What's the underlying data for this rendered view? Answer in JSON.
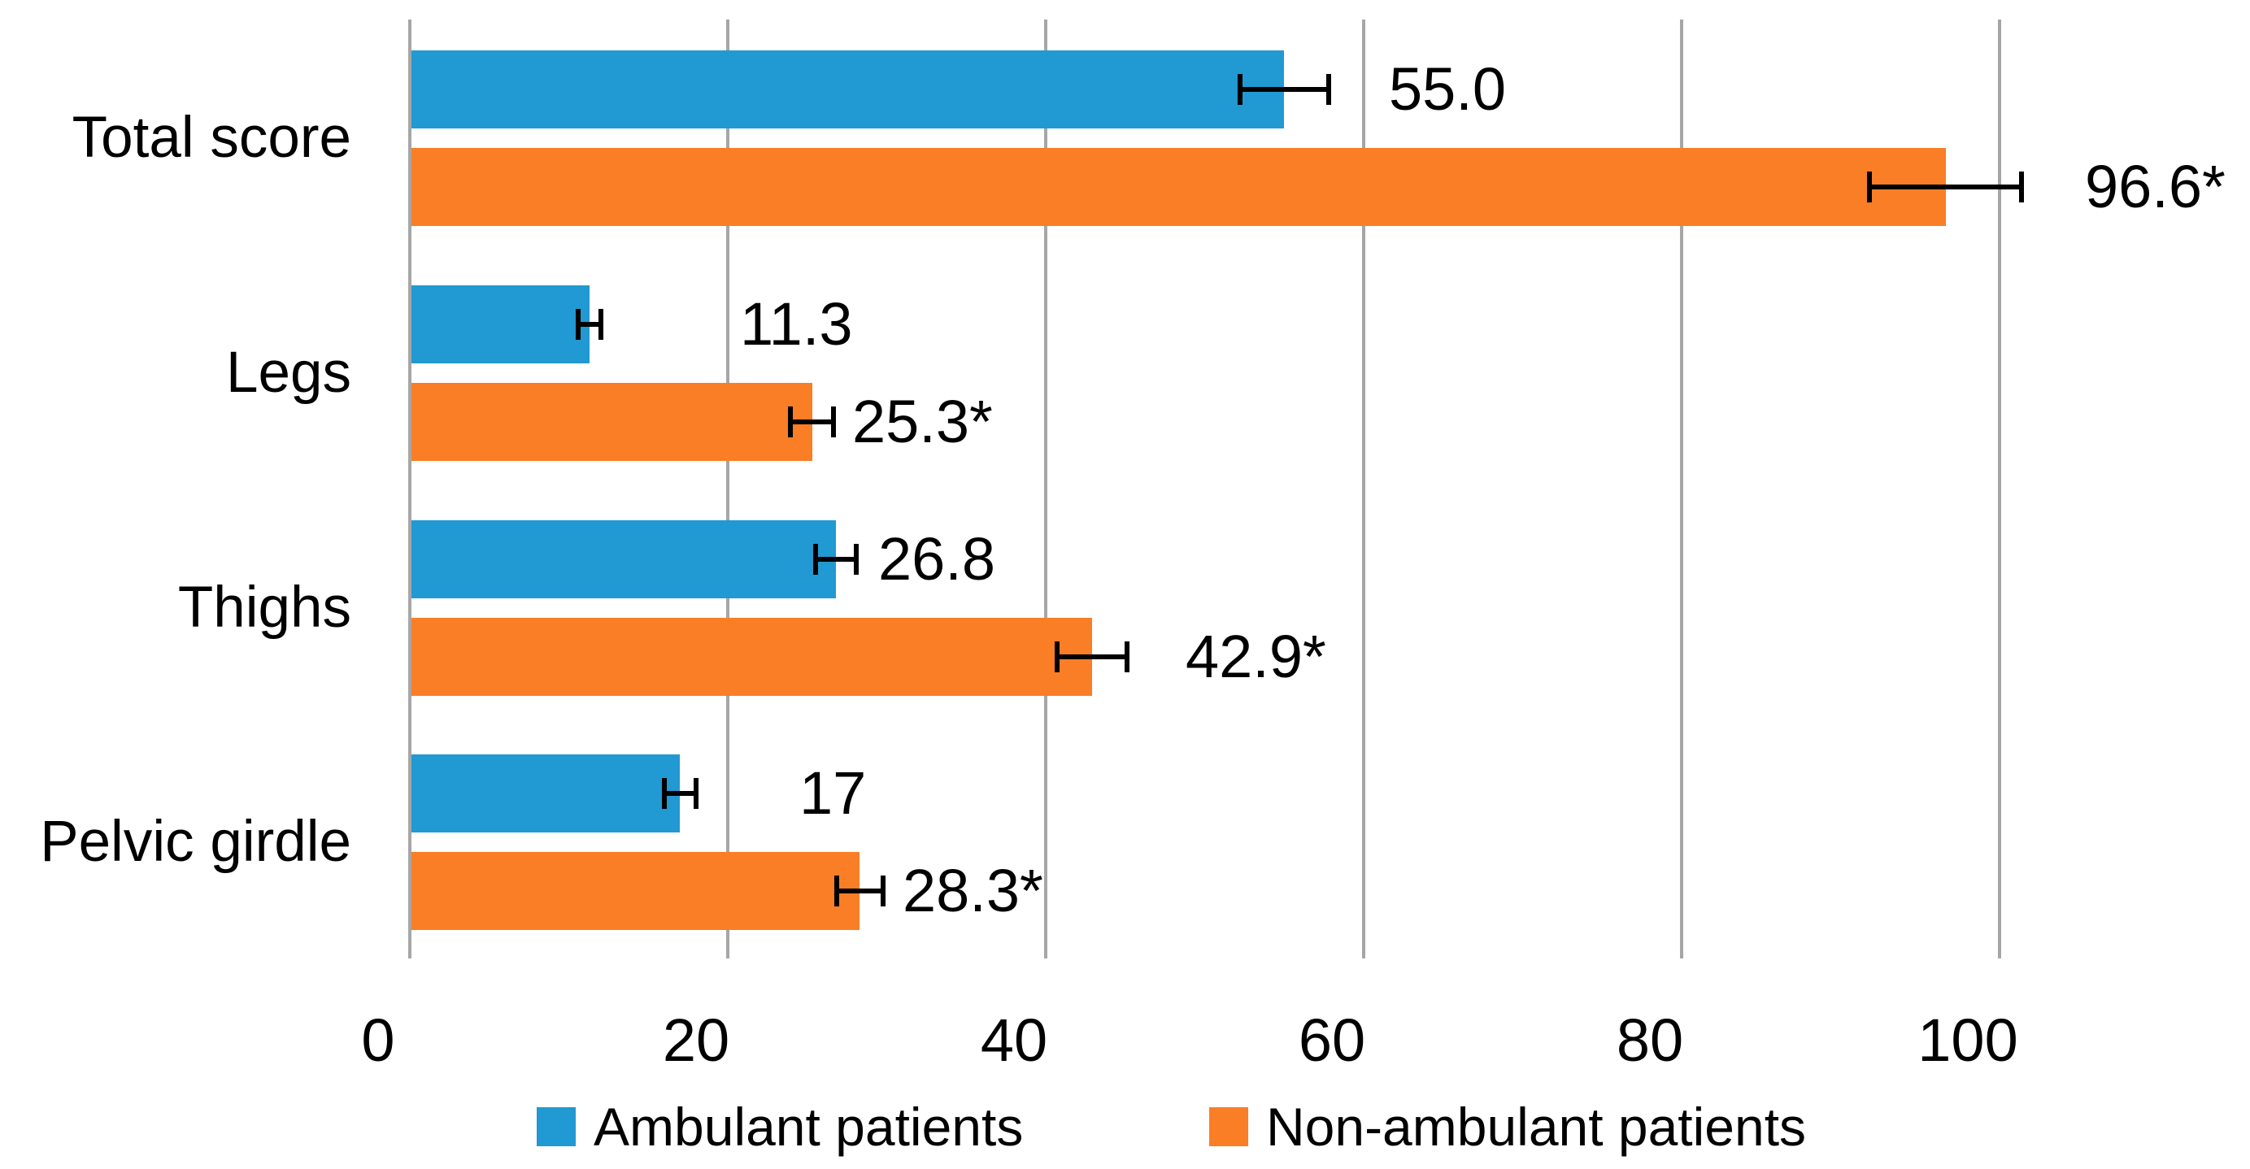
{
  "chart_data": {
    "type": "bar",
    "orientation": "horizontal",
    "title": "",
    "xlabel": "",
    "ylabel": "",
    "categories": [
      "Total score",
      "Legs",
      "Thighs",
      "Pelvic girdle"
    ],
    "series": [
      {
        "name": "Ambulant patients",
        "color": "#2199d2",
        "values": [
          55.0,
          11.3,
          26.8,
          17
        ],
        "labels": [
          "55.0",
          "11.3",
          "26.8",
          "17"
        ],
        "errors": [
          2.8,
          0.7,
          1.3,
          1.0
        ]
      },
      {
        "name": "Non-ambulant patients",
        "color": "#f97e26",
        "values": [
          96.6,
          25.3,
          42.9,
          28.3
        ],
        "labels": [
          "96.6*",
          "25.3*",
          "42.9*",
          "28.3*"
        ],
        "errors": [
          4.8,
          1.35,
          2.2,
          1.45
        ]
      }
    ],
    "x_ticks": [
      0,
      20,
      40,
      60,
      80,
      100
    ],
    "xlim": [
      0,
      100
    ],
    "grid": true,
    "gridline_color": "#a6a6a6",
    "text_color": "#000000",
    "legend_position": "bottom"
  }
}
